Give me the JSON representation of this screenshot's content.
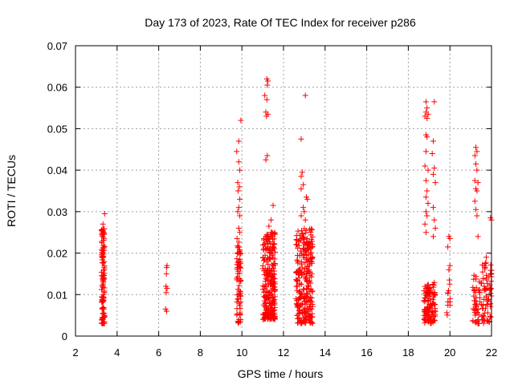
{
  "chart_data": {
    "type": "scatter",
    "title": "Day 173 of 2023, Rate Of TEC Index for receiver p286",
    "xlabel": "GPS time / hours",
    "ylabel": "ROTI / TECUs",
    "xlim": [
      2,
      22
    ],
    "ylim": [
      0,
      0.07
    ],
    "xticks": [
      "2",
      "4",
      "6",
      "8",
      "10",
      "12",
      "14",
      "16",
      "18",
      "20",
      "22"
    ],
    "yticks": [
      "0",
      "0.01",
      "0.02",
      "0.03",
      "0.04",
      "0.05",
      "0.06",
      "0.07"
    ],
    "grid": true,
    "legend": "none",
    "marker": "+",
    "colors": {
      "series": "#ff0000",
      "grid": "#a0a0a0",
      "frame": "#000000"
    },
    "clusters": [
      {
        "x_range": [
          3.25,
          3.4
        ],
        "y_range": [
          0.003,
          0.026
        ],
        "count": 110,
        "extra": [
          [
            3.4,
            0.0295
          ],
          [
            3.32,
            0.027
          ],
          [
            3.25,
            0.0255
          ]
        ]
      },
      {
        "x_range": [
          6.3,
          6.45
        ],
        "y_range": [
          0.006,
          0.017
        ],
        "count": 0,
        "extra": [
          [
            6.4,
            0.017
          ],
          [
            6.38,
            0.0165
          ],
          [
            6.37,
            0.015
          ],
          [
            6.35,
            0.012
          ],
          [
            6.4,
            0.0115
          ],
          [
            6.36,
            0.0105
          ],
          [
            6.33,
            0.0065
          ],
          [
            6.38,
            0.006
          ]
        ]
      },
      {
        "x_range": [
          9.75,
          9.95
        ],
        "y_range": [
          0.003,
          0.024
        ],
        "count": 70,
        "extra": [
          [
            9.95,
            0.052
          ],
          [
            9.85,
            0.047
          ],
          [
            9.75,
            0.0445
          ],
          [
            9.85,
            0.042
          ],
          [
            9.9,
            0.04
          ],
          [
            9.8,
            0.037
          ],
          [
            9.88,
            0.036
          ],
          [
            9.82,
            0.035
          ],
          [
            9.9,
            0.033
          ],
          [
            9.85,
            0.031
          ],
          [
            9.8,
            0.03
          ],
          [
            9.9,
            0.029
          ],
          [
            9.85,
            0.026
          ],
          [
            9.9,
            0.025
          ]
        ]
      },
      {
        "x_range": [
          11.0,
          11.6
        ],
        "y_range": [
          0.004,
          0.025
        ],
        "count": 260,
        "extra": [
          [
            11.2,
            0.062
          ],
          [
            11.25,
            0.0615
          ],
          [
            11.22,
            0.0605
          ],
          [
            11.1,
            0.058
          ],
          [
            11.2,
            0.057
          ],
          [
            11.15,
            0.054
          ],
          [
            11.25,
            0.0535
          ],
          [
            11.18,
            0.053
          ],
          [
            11.22,
            0.0435
          ],
          [
            11.15,
            0.0425
          ],
          [
            11.5,
            0.0315
          ],
          [
            11.4,
            0.028
          ],
          [
            11.3,
            0.0265
          ],
          [
            11.45,
            0.025
          ]
        ]
      },
      {
        "x_range": [
          12.6,
          13.4
        ],
        "y_range": [
          0.003,
          0.026
        ],
        "count": 260,
        "extra": [
          [
            13.05,
            0.058
          ],
          [
            12.85,
            0.0475
          ],
          [
            12.9,
            0.0395
          ],
          [
            12.85,
            0.0385
          ],
          [
            12.95,
            0.0365
          ],
          [
            12.85,
            0.0355
          ],
          [
            13.1,
            0.0335
          ],
          [
            13.15,
            0.033
          ],
          [
            12.95,
            0.031
          ],
          [
            13.0,
            0.03
          ],
          [
            12.85,
            0.029
          ],
          [
            13.05,
            0.028
          ]
        ]
      },
      {
        "x_range": [
          18.75,
          19.3
        ],
        "y_range": [
          0.003,
          0.013
        ],
        "count": 120,
        "extra": [
          [
            18.85,
            0.0565
          ],
          [
            19.25,
            0.0565
          ],
          [
            18.9,
            0.055
          ],
          [
            18.85,
            0.054
          ],
          [
            18.95,
            0.0535
          ],
          [
            18.8,
            0.053
          ],
          [
            18.9,
            0.0525
          ],
          [
            18.85,
            0.0485
          ],
          [
            18.9,
            0.048
          ],
          [
            19.2,
            0.047
          ],
          [
            18.85,
            0.0445
          ],
          [
            19.15,
            0.044
          ],
          [
            18.8,
            0.041
          ],
          [
            18.95,
            0.04
          ],
          [
            19.25,
            0.0405
          ],
          [
            19.2,
            0.039
          ],
          [
            18.85,
            0.0375
          ],
          [
            19.3,
            0.037
          ],
          [
            18.9,
            0.035
          ],
          [
            18.85,
            0.0335
          ],
          [
            18.95,
            0.032
          ],
          [
            19.2,
            0.031
          ],
          [
            18.85,
            0.03
          ],
          [
            18.9,
            0.029
          ],
          [
            19.25,
            0.028
          ],
          [
            18.8,
            0.027
          ],
          [
            19.3,
            0.026
          ],
          [
            18.85,
            0.025
          ],
          [
            19.2,
            0.024
          ]
        ]
      },
      {
        "x_range": [
          19.85,
          20.05
        ],
        "y_range": [
          0.005,
          0.015
        ],
        "count": 12,
        "extra": [
          [
            19.95,
            0.024
          ],
          [
            20.0,
            0.0235
          ],
          [
            19.9,
            0.0215
          ],
          [
            20.0,
            0.017
          ],
          [
            19.95,
            0.016
          ]
        ]
      },
      {
        "x_range": [
          21.1,
          21.45
        ],
        "y_range": [
          0.003,
          0.015
        ],
        "count": 45,
        "extra": [
          [
            21.25,
            0.0455
          ],
          [
            21.3,
            0.0445
          ],
          [
            21.2,
            0.0435
          ],
          [
            21.25,
            0.0415
          ],
          [
            21.3,
            0.04
          ],
          [
            21.2,
            0.0375
          ],
          [
            21.35,
            0.037
          ],
          [
            21.25,
            0.0355
          ],
          [
            21.3,
            0.035
          ],
          [
            21.2,
            0.0325
          ],
          [
            21.25,
            0.0305
          ],
          [
            21.3,
            0.029
          ],
          [
            21.35,
            0.024
          ]
        ]
      },
      {
        "x_range": [
          21.5,
          22.0
        ],
        "y_range": [
          0.003,
          0.018
        ],
        "count": 70,
        "extra": [
          [
            21.95,
            0.0285
          ],
          [
            22.0,
            0.028
          ],
          [
            21.75,
            0.019
          ],
          [
            21.7,
            0.0175
          ]
        ]
      }
    ]
  }
}
